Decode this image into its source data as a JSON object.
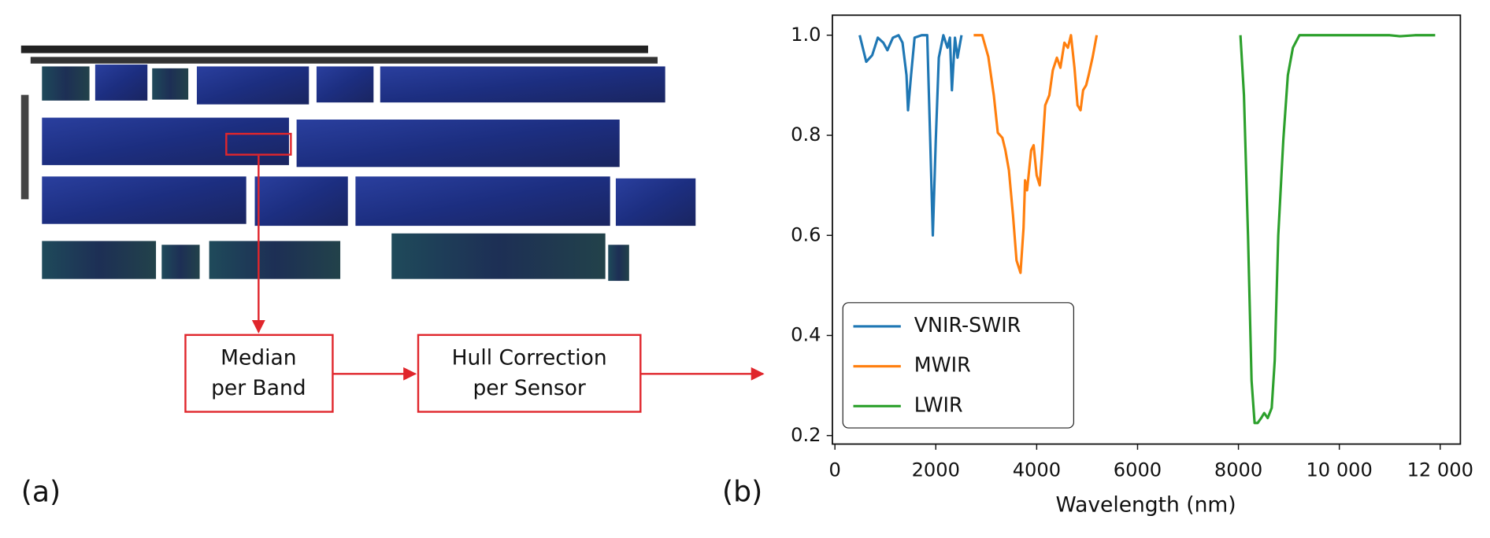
{
  "panel_a": {
    "label": "(a)",
    "boxes": [
      [
        "Median",
        "per Band"
      ],
      [
        "Hull Correction",
        "per Sensor"
      ]
    ]
  },
  "panel_b": {
    "label": "(b)"
  },
  "chart_data": {
    "type": "line",
    "x_label": "Wavelength (nm)",
    "xlim": [
      -50,
      12400
    ],
    "ylim": [
      0.183,
      1.04
    ],
    "xticks": [
      0,
      2000,
      4000,
      6000,
      8000,
      {
        "value": 10000,
        "label": "10 000"
      },
      {
        "value": 12000,
        "label": "12 000"
      }
    ],
    "yticks": [
      0.2,
      0.4,
      0.6,
      0.8,
      {
        "value": 1,
        "label": "1.0"
      }
    ],
    "legend": "lower left",
    "grid": false,
    "series": [
      {
        "name": "VNIR-SWIR",
        "color": "#1f77b4",
        "x": [
          490,
          620,
          740,
          850,
          960,
          1040,
          1150,
          1260,
          1340,
          1420,
          1450,
          1510,
          1580,
          1720,
          1830,
          1890,
          1940,
          2000,
          2060,
          2150,
          2230,
          2280,
          2320,
          2380,
          2430,
          2510
        ],
        "values": [
          1.0,
          0.947,
          0.96,
          0.995,
          0.985,
          0.97,
          0.995,
          1.0,
          0.985,
          0.92,
          0.85,
          0.92,
          0.995,
          1.0,
          1.0,
          0.787,
          0.6,
          0.79,
          0.955,
          1.0,
          0.975,
          0.995,
          0.89,
          0.995,
          0.955,
          1.0
        ]
      },
      {
        "name": "MWIR",
        "color": "#ff7f0e",
        "x": [
          2750,
          2920,
          3040,
          3150,
          3230,
          3320,
          3380,
          3450,
          3530,
          3600,
          3680,
          3740,
          3770,
          3810,
          3890,
          3940,
          4000,
          4060,
          4110,
          4170,
          4250,
          4320,
          4400,
          4470,
          4550,
          4620,
          4680,
          4750,
          4810,
          4870,
          4920,
          4980,
          5030,
          5110,
          5190
        ],
        "values": [
          1.0,
          1.0,
          0.957,
          0.88,
          0.805,
          0.795,
          0.77,
          0.73,
          0.64,
          0.55,
          0.525,
          0.615,
          0.71,
          0.69,
          0.77,
          0.78,
          0.72,
          0.7,
          0.77,
          0.86,
          0.88,
          0.93,
          0.955,
          0.935,
          0.985,
          0.975,
          1.0,
          0.935,
          0.86,
          0.85,
          0.89,
          0.9,
          0.92,
          0.957,
          1.0
        ]
      },
      {
        "name": "LWIR",
        "color": "#2ca02c",
        "x": [
          8040,
          8110,
          8190,
          8260,
          8320,
          8380,
          8450,
          8510,
          8580,
          8660,
          8720,
          8790,
          8890,
          8980,
          9080,
          9210,
          9450,
          11000,
          11200,
          11500,
          11900
        ],
        "values": [
          1.0,
          0.88,
          0.597,
          0.31,
          0.225,
          0.225,
          0.235,
          0.245,
          0.235,
          0.255,
          0.35,
          0.6,
          0.79,
          0.92,
          0.975,
          1.0,
          1.0,
          1.0,
          0.998,
          1.0,
          1.0
        ]
      }
    ]
  }
}
